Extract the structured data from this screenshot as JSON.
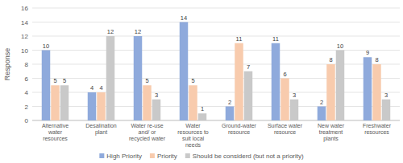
{
  "chart_data": {
    "type": "bar",
    "y_label": "Response",
    "categories": [
      "Alternative water resources",
      "Desalination plant",
      "Water re-use and/ or recycled water",
      "Water resources to suit local needs",
      "Ground-water resource",
      "Surface water resource",
      "New water treatment plants",
      "Freshwater resources"
    ],
    "series": [
      {
        "name": "High Priority",
        "color": "#8faadc",
        "values": [
          10,
          4,
          12,
          14,
          2,
          11,
          2,
          9
        ]
      },
      {
        "name": "Priority",
        "color": "#f8cbad",
        "values": [
          5,
          4,
          5,
          5,
          11,
          6,
          8,
          8
        ]
      },
      {
        "name": "Should be considerd (but not a priority)",
        "color": "#c9c9c9",
        "values": [
          5,
          12,
          3,
          1,
          7,
          3,
          10,
          3
        ]
      }
    ],
    "ylim": [
      0,
      16
    ],
    "yticks": [
      0,
      2,
      4,
      6,
      8,
      10,
      12,
      14,
      16
    ],
    "grid": true,
    "legend": "bottom",
    "data_labels": true
  }
}
